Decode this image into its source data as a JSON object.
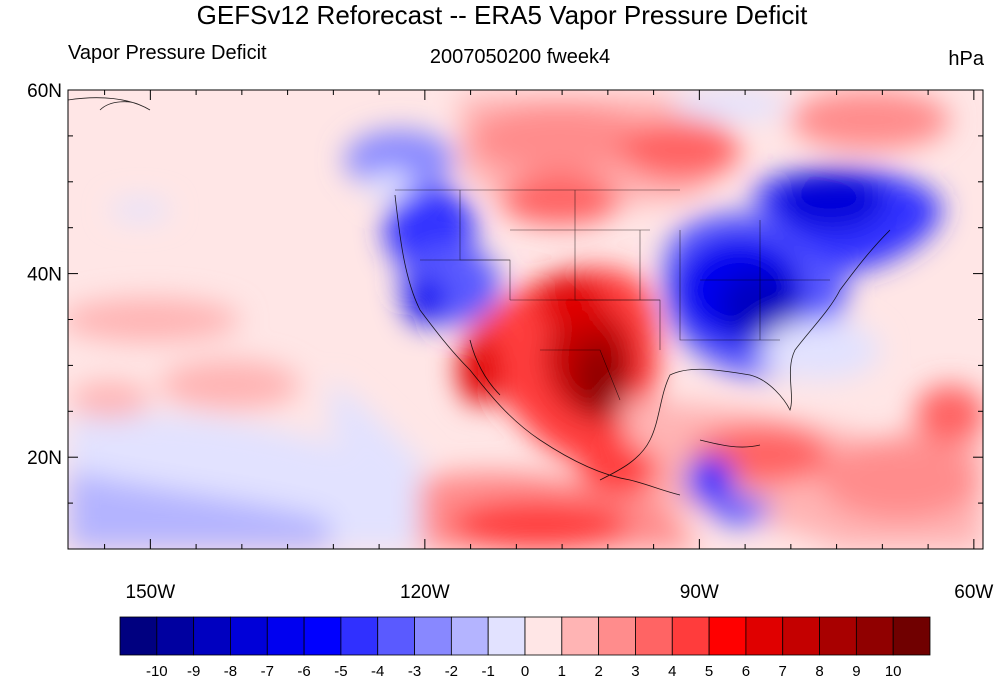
{
  "title": "GEFSv12 Reforecast -- ERA5 Vapor Pressure Deficit",
  "subtitle_left": "Vapor Pressure Deficit",
  "subtitle_center": "2007050200 fweek4",
  "units": "hPa",
  "lat_ticks": [
    {
      "label": "60N",
      "value": 60
    },
    {
      "label": "40N",
      "value": 40
    },
    {
      "label": "20N",
      "value": 20
    }
  ],
  "lon_ticks": [
    {
      "label": "150W",
      "value": -150
    },
    {
      "label": "120W",
      "value": -120
    },
    {
      "label": "90W",
      "value": -90
    },
    {
      "label": "60W",
      "value": -60
    }
  ],
  "map_extent": {
    "lon": [
      -159,
      -59
    ],
    "lat": [
      10,
      60
    ]
  },
  "colorbar": {
    "levels": [
      "-10",
      "-9",
      "-8",
      "-7",
      "-6",
      "-5",
      "-4",
      "-3",
      "-2",
      "-1",
      "0",
      "1",
      "2",
      "3",
      "4",
      "5",
      "6",
      "7",
      "8",
      "9",
      "10"
    ],
    "colors": [
      "#000080",
      "#0000a0",
      "#0000c0",
      "#0000d8",
      "#0000f0",
      "#0000ff",
      "#3030ff",
      "#5a5aff",
      "#8888ff",
      "#b4b4ff",
      "#e2e2ff",
      "#ffe6e6",
      "#ffb4b4",
      "#ff8c8c",
      "#ff6464",
      "#ff3c3c",
      "#ff0000",
      "#e00000",
      "#c40000",
      "#a80000",
      "#900000",
      "#700000"
    ]
  },
  "regions": [
    {
      "name": "southwest-warm-anomaly",
      "lon": -103,
      "lat": 30,
      "value": 9
    },
    {
      "name": "eastern-us-cold-anomaly",
      "lon": -88,
      "lat": 40,
      "value": -7
    },
    {
      "name": "canada-east-cold-anomaly",
      "lon": -77,
      "lat": 48,
      "value": -7
    },
    {
      "name": "pacific-northwest-cold-anomaly",
      "lon": -117,
      "lat": 43,
      "value": -5
    },
    {
      "name": "northern-plains-warm-anomaly",
      "lon": -103,
      "lat": 51,
      "value": 4
    },
    {
      "name": "central-america-cold-anomaly",
      "lon": -90,
      "lat": 16,
      "value": -5
    },
    {
      "name": "caribbean-warm-anomaly",
      "lon": -72,
      "lat": 20,
      "value": 4
    },
    {
      "name": "eastern-pacific-warm-anomaly",
      "lon": -110,
      "lat": 14,
      "value": 4
    }
  ]
}
